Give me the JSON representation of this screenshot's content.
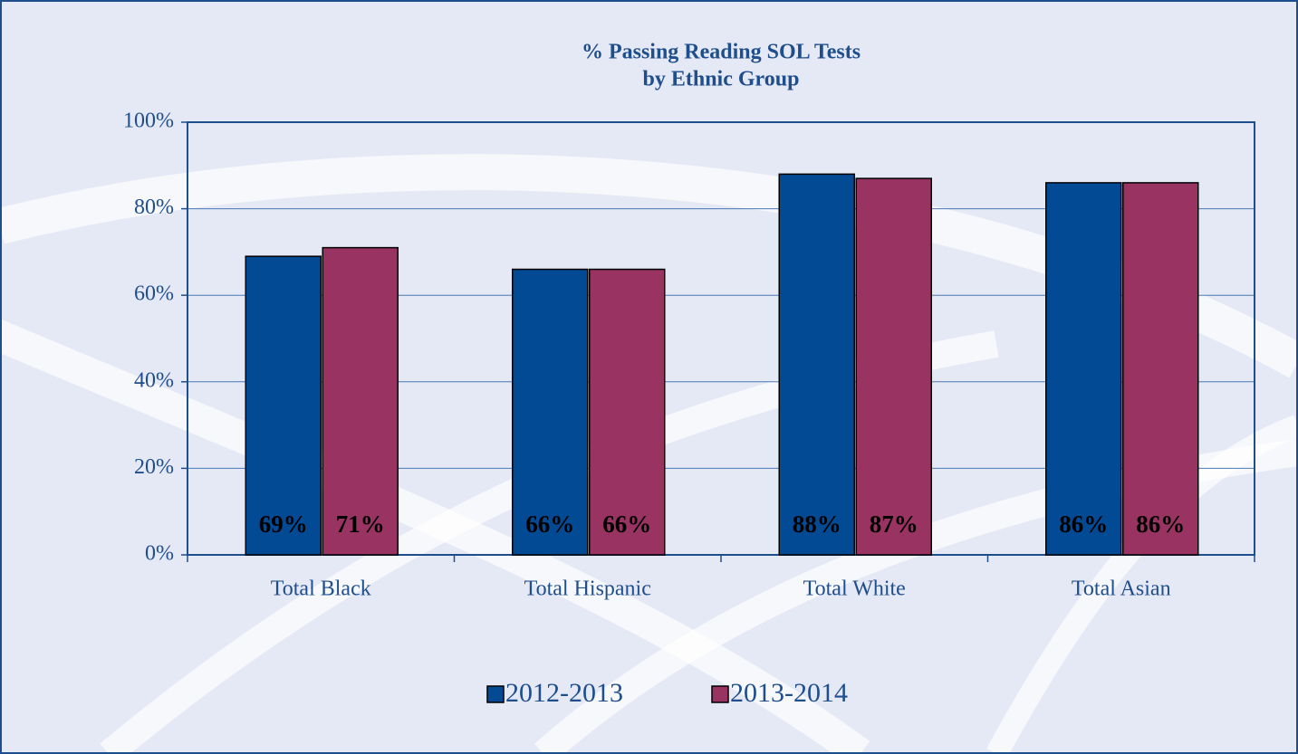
{
  "chart_data": {
    "type": "bar",
    "title": "% Passing Reading SOL Tests",
    "subtitle": "by Ethnic Group",
    "categories": [
      "Total Black",
      "Total Hispanic",
      "Total White",
      "Total Asian"
    ],
    "series": [
      {
        "name": "2012-2013",
        "color": "#034a94",
        "values": [
          69,
          66,
          88,
          86
        ],
        "value_labels": [
          "69%",
          "66%",
          "88%",
          "86%"
        ]
      },
      {
        "name": "2013-2014",
        "color": "#993362",
        "values": [
          71,
          66,
          87,
          86
        ],
        "value_labels": [
          "71%",
          "66%",
          "87%",
          "86%"
        ]
      }
    ],
    "ylim": [
      0,
      100
    ],
    "yticks": [
      {
        "value": 0,
        "label": "0%"
      },
      {
        "value": 20,
        "label": "20%"
      },
      {
        "value": 40,
        "label": "40%"
      },
      {
        "value": 60,
        "label": "60%"
      },
      {
        "value": 80,
        "label": "80%"
      },
      {
        "value": 100,
        "label": "100%"
      }
    ],
    "grid": true,
    "legend": "bottom"
  }
}
